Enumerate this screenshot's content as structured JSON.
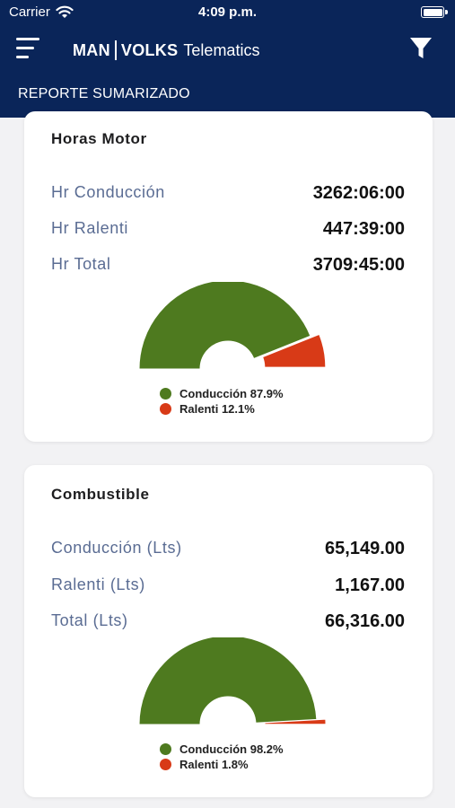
{
  "status_bar": {
    "carrier": "Carrier",
    "time": "4:09 p.m."
  },
  "header": {
    "brand_man": "MAN",
    "brand_volks": "VOLKS",
    "brand_telematics": "Telematics",
    "subtitle": "REPORTE SUMARIZADO"
  },
  "colors": {
    "header_bg": "#0a2559",
    "conduccion": "#4e7a1f",
    "ralenti": "#d83a17",
    "label": "#5a6c93"
  },
  "cards": [
    {
      "title": "Horas Motor",
      "rows": [
        {
          "label": "Hr Conducción",
          "value": "3262:06:00"
        },
        {
          "label": "Hr Ralenti",
          "value": "447:39:00"
        },
        {
          "label": "Hr Total",
          "value": "3709:45:00"
        }
      ],
      "legend": [
        "Conducción 87.9%",
        "Ralenti 12.1%"
      ]
    },
    {
      "title": "Combustible",
      "rows": [
        {
          "label": "Conducción (Lts)",
          "value": "65,149.00"
        },
        {
          "label": "Ralenti (Lts)",
          "value": "1,167.00"
        },
        {
          "label": "Total (Lts)",
          "value": "66,316.00"
        }
      ],
      "legend": [
        "Conducción 98.2%",
        "Ralenti 1.8%"
      ]
    }
  ],
  "chart_data": [
    {
      "type": "pie",
      "variant": "semi-donut",
      "categories": [
        "Conducción",
        "Ralenti"
      ],
      "values": [
        87.9,
        12.1
      ],
      "colors": [
        "#4e7a1f",
        "#d83a17"
      ],
      "legend": "bottom"
    },
    {
      "type": "pie",
      "variant": "semi-donut",
      "categories": [
        "Conducción",
        "Ralenti"
      ],
      "values": [
        98.2,
        1.8
      ],
      "colors": [
        "#4e7a1f",
        "#d83a17"
      ],
      "legend": "bottom"
    }
  ]
}
